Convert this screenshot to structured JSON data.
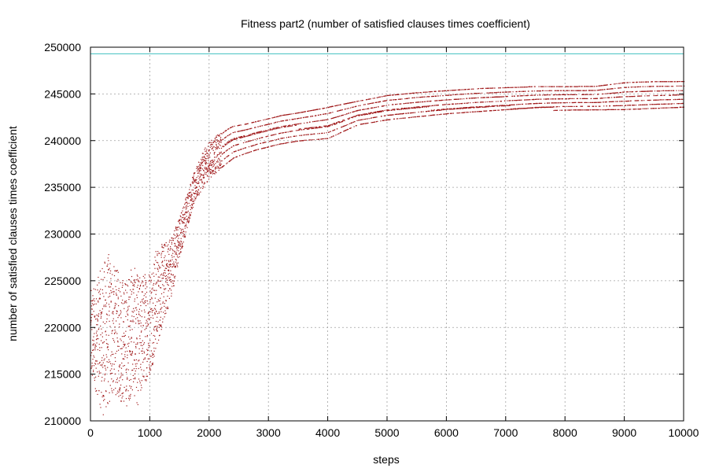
{
  "chart_data": {
    "type": "scatter",
    "title": "Fitness part2 (number of satisfied clauses times coefficient)",
    "xlabel": "steps",
    "ylabel": "number of satisfied clauses times coefficient",
    "xlim": [
      0,
      10000
    ],
    "ylim": [
      210000,
      250000
    ],
    "x_ticks": [
      "0",
      "1000",
      "2000",
      "3000",
      "4000",
      "5000",
      "6000",
      "7000",
      "8000",
      "9000",
      "10000"
    ],
    "y_ticks": [
      "210000",
      "215000",
      "220000",
      "225000",
      "230000",
      "235000",
      "240000",
      "245000",
      "250000"
    ],
    "grid": true,
    "legend": "none",
    "series": [
      {
        "color": "#a0191b",
        "style": "dots",
        "envelope": {
          "x": [
            0,
            100,
            200,
            300,
            400,
            500,
            600,
            700,
            800,
            900,
            1000,
            1100,
            1200,
            1300,
            1400,
            1500,
            1600,
            1700,
            1800,
            1900,
            2000,
            2100,
            2200,
            2300,
            2400,
            2600,
            2800,
            3000,
            3200,
            3500,
            4000,
            4500,
            5000,
            5500,
            6000,
            6500,
            7000,
            7500,
            8000,
            8500,
            9000,
            9500,
            10000
          ],
          "low": [
            214000,
            213000,
            210500,
            211500,
            213000,
            212000,
            211500,
            213000,
            211500,
            214000,
            215000,
            217500,
            220000,
            222000,
            224500,
            227500,
            230000,
            232500,
            234000,
            235000,
            236000,
            236500,
            237000,
            237500,
            238000,
            238500,
            238900,
            239200,
            239500,
            239800,
            240000,
            241500,
            242000,
            242300,
            242600,
            242800,
            243000,
            243200,
            243300,
            243300,
            243300,
            243400,
            243500
          ],
          "high": [
            224000,
            225000,
            227000,
            228000,
            226500,
            226000,
            225000,
            227000,
            225500,
            226000,
            226500,
            228500,
            229000,
            229500,
            230500,
            232000,
            234000,
            236000,
            237500,
            239000,
            240000,
            240500,
            241000,
            241500,
            241800,
            242000,
            242300,
            242600,
            242900,
            243200,
            243800,
            244400,
            245000,
            245300,
            245500,
            245700,
            245800,
            245900,
            245900,
            245900,
            246300,
            246400,
            246400
          ]
        }
      },
      {
        "color": "#40c0c0",
        "style": "line",
        "x": [
          0,
          10000
        ],
        "y": [
          249300,
          249300
        ]
      }
    ]
  }
}
